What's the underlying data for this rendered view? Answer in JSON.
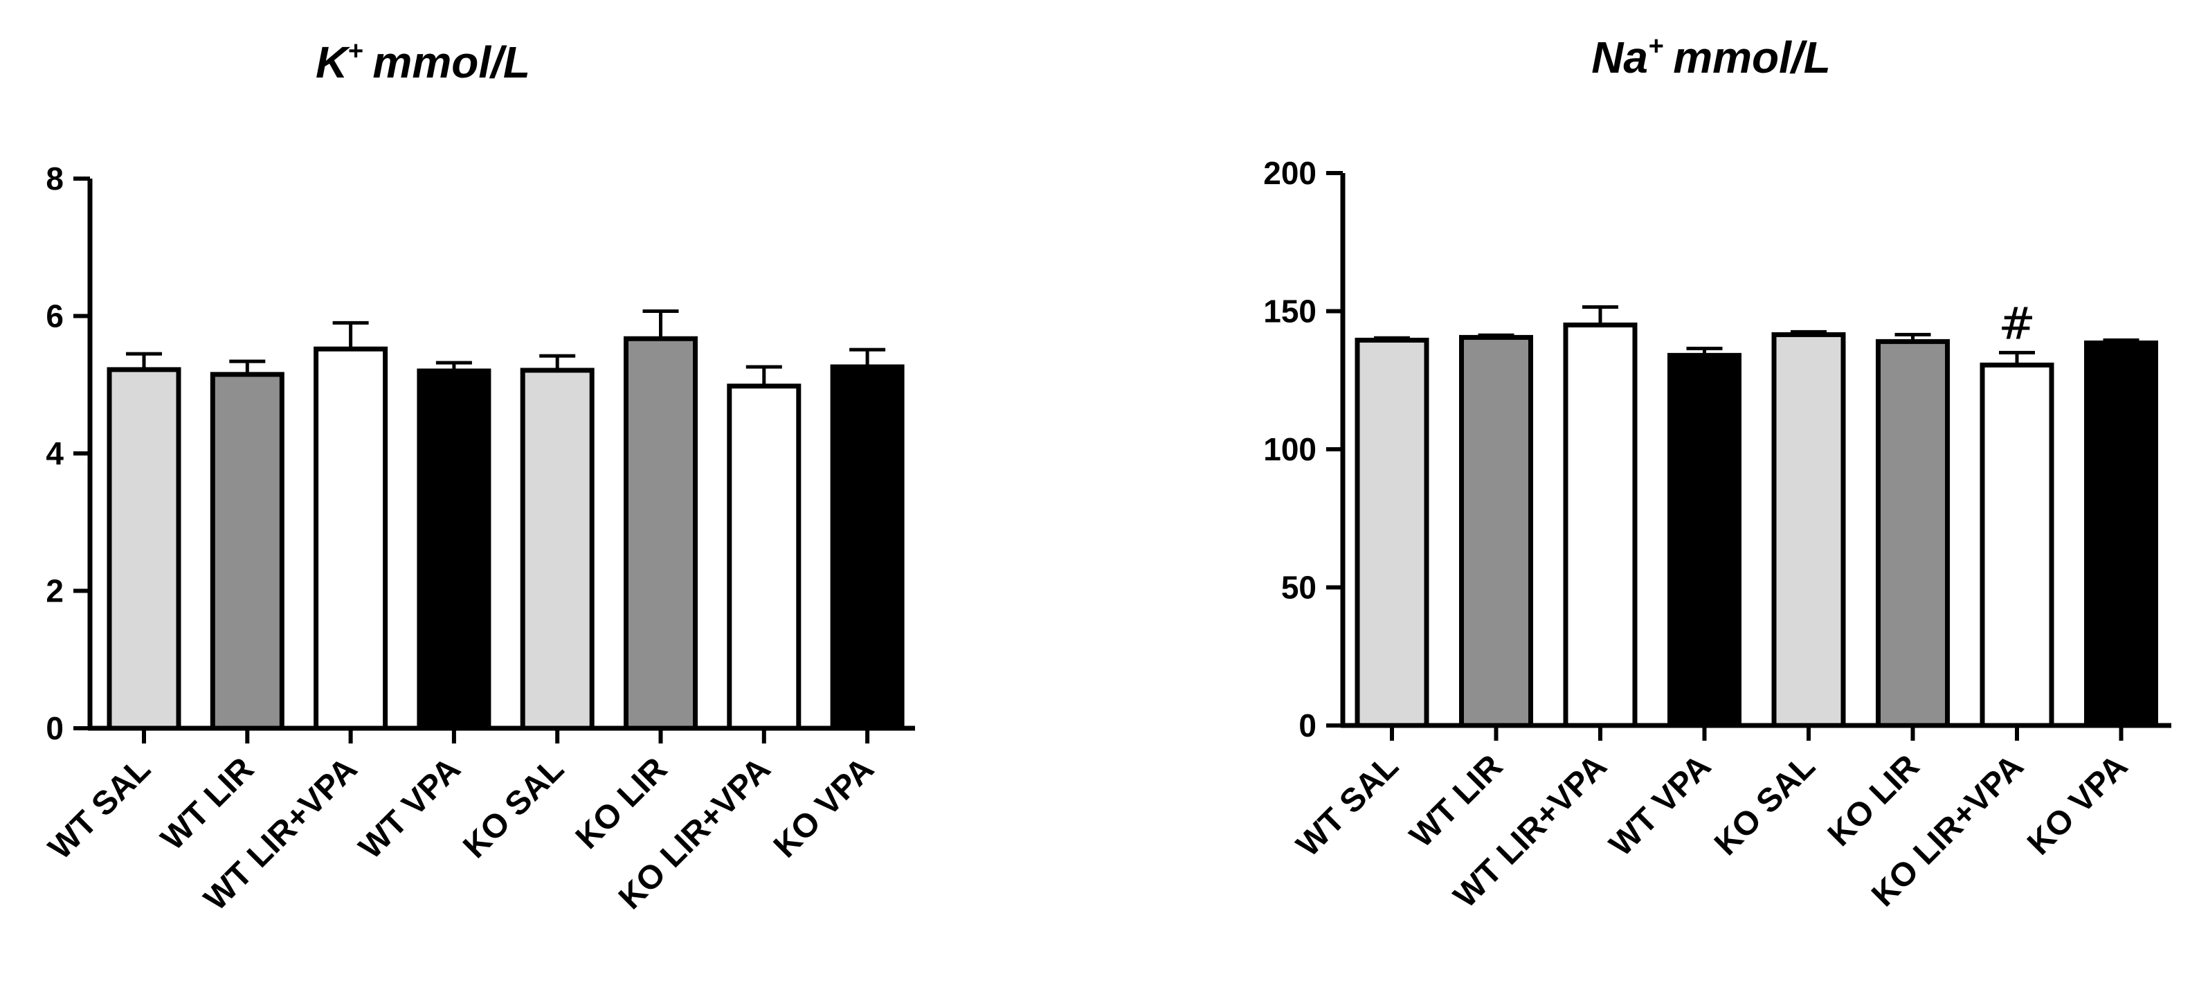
{
  "chart_data": [
    {
      "type": "bar",
      "title": {
        "ion": "K",
        "charge": "+",
        "unit": "mmol/L"
      },
      "categories": [
        "WT SAL",
        "WT LIR",
        "WT LIR+VPA",
        "WT VPA",
        "KO SAL",
        "KO LIR",
        "KO LIR+VPA",
        "KO VPA"
      ],
      "values": [
        5.22,
        5.15,
        5.52,
        5.2,
        5.21,
        5.67,
        4.98,
        5.26
      ],
      "errors": [
        0.23,
        0.19,
        0.38,
        0.12,
        0.21,
        0.4,
        0.28,
        0.25
      ],
      "fill_colors": [
        "#d9d9d9",
        "#8f8f8f",
        "#ffffff",
        "#000000",
        "#d9d9d9",
        "#8f8f8f",
        "#ffffff",
        "#000000"
      ],
      "ylim": [
        0,
        8
      ],
      "yticks": [
        0,
        2,
        4,
        6,
        8
      ],
      "annotations": [],
      "grid": false,
      "legend": "none"
    },
    {
      "type": "bar",
      "title": {
        "ion": "Na",
        "charge": "+",
        "unit": "mmol/L"
      },
      "categories": [
        "WT SAL",
        "WT LIR",
        "WT LIR+VPA",
        "WT VPA",
        "KO SAL",
        "KO LIR",
        "KO LIR+VPA",
        "KO VPA"
      ],
      "values": [
        139.5,
        140.5,
        145,
        134,
        141.5,
        139,
        130.5,
        138.5
      ],
      "errors": [
        0.8,
        0.8,
        6.5,
        2.5,
        1.0,
        2.5,
        4.5,
        1.0
      ],
      "fill_colors": [
        "#d9d9d9",
        "#8f8f8f",
        "#ffffff",
        "#000000",
        "#d9d9d9",
        "#8f8f8f",
        "#ffffff",
        "#000000"
      ],
      "ylim": [
        0,
        200
      ],
      "yticks": [
        0,
        50,
        100,
        150,
        200
      ],
      "annotations": [
        {
          "category": "KO LIR+VPA",
          "text": "#"
        }
      ],
      "grid": false,
      "legend": "none"
    }
  ]
}
